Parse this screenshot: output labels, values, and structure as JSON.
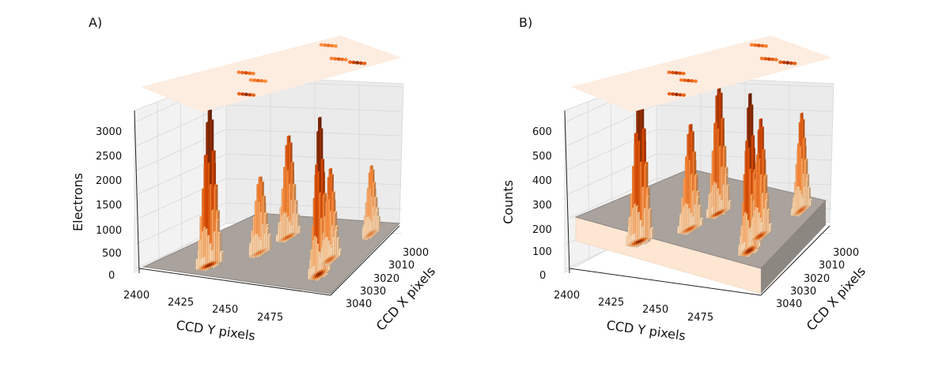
{
  "figure": {
    "panels": [
      {
        "panel_label": "A)",
        "z_label": "Electrons",
        "x_label": "CCD X pixels",
        "y_label": "CCD Y pixels",
        "z_ticks": [
          "0",
          "500",
          "1000",
          "1500",
          "2000",
          "2500",
          "3000"
        ],
        "y_ticks": [
          "2400",
          "2425",
          "2450",
          "2475"
        ],
        "x_ticks": [
          "3000",
          "3010",
          "3020",
          "3030",
          "3040"
        ]
      },
      {
        "panel_label": "B)",
        "z_label": "Counts",
        "x_label": "CCD X pixels",
        "y_label": "CCD Y pixels",
        "z_ticks": [
          "0",
          "100",
          "200",
          "300",
          "400",
          "500",
          "600"
        ],
        "y_ticks": [
          "2400",
          "2425",
          "2450",
          "2475"
        ],
        "x_ticks": [
          "3000",
          "3010",
          "3020",
          "3030",
          "3040"
        ]
      }
    ]
  },
  "chart_data": [
    {
      "type": "3d-bar",
      "title": "",
      "panel": "A)",
      "zlabel": "Electrons",
      "xlabel": "CCD X pixels",
      "ylabel": "CCD Y pixels",
      "zlim": [
        0,
        3200
      ],
      "ylim": [
        2400,
        2500
      ],
      "xlim": [
        2995,
        3048
      ],
      "baseline": 0,
      "colormap": "Oranges",
      "has_projected_heatmap": true,
      "grid": true,
      "spots": [
        {
          "y": 2427,
          "x": 3040,
          "peak": 3100
        },
        {
          "y": 2443,
          "x": 3012,
          "peak": 2000
        },
        {
          "y": 2441,
          "x": 3026,
          "peak": 1500
        },
        {
          "y": 2485,
          "x": 3036,
          "peak": 3100
        },
        {
          "y": 2482,
          "x": 3025,
          "peak": 1800
        },
        {
          "y": 2489,
          "x": 3004,
          "peak": 1350
        }
      ]
    },
    {
      "type": "3d-bar",
      "title": "",
      "panel": "B)",
      "zlabel": "Counts",
      "xlabel": "CCD X pixels",
      "ylabel": "CCD Y pixels",
      "zlim": [
        0,
        650
      ],
      "ylim": [
        2400,
        2500
      ],
      "xlim": [
        2995,
        3048
      ],
      "baseline": 100,
      "colormap": "Oranges",
      "has_projected_heatmap": true,
      "grid": true,
      "spots": [
        {
          "y": 2427,
          "x": 3040,
          "peak": 620
        },
        {
          "y": 2443,
          "x": 3012,
          "peak": 520
        },
        {
          "y": 2441,
          "x": 3026,
          "peak": 420
        },
        {
          "y": 2485,
          "x": 3036,
          "peak": 630
        },
        {
          "y": 2482,
          "x": 3025,
          "peak": 470
        },
        {
          "y": 2489,
          "x": 3004,
          "peak": 390
        }
      ]
    }
  ]
}
